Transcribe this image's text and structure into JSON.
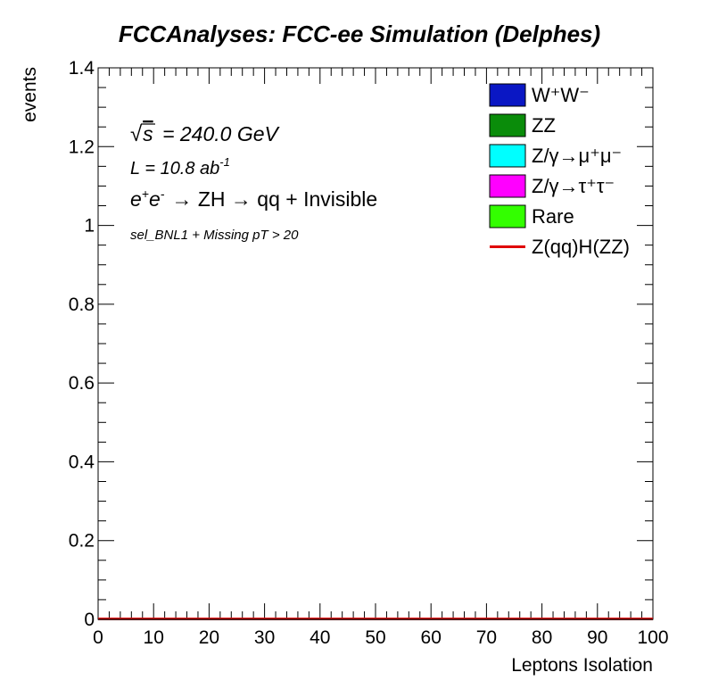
{
  "chart_data": {
    "type": "bar",
    "title": "FCCAnalyses: FCC-ee Simulation (Delphes)",
    "xlabel": "Leptons Isolation",
    "ylabel": "events",
    "xlim": [
      0,
      100
    ],
    "ylim": [
      0,
      1.4
    ],
    "x_ticks": [
      "0",
      "10",
      "20",
      "30",
      "40",
      "50",
      "60",
      "70",
      "80",
      "90",
      "100"
    ],
    "y_ticks": [
      "0",
      "0.2",
      "0.4",
      "0.6",
      "0.8",
      "1",
      "1.2",
      "1.4"
    ],
    "annotations": {
      "sqrt_s": "= 240.0 GeV",
      "lumi": "= 10.8 ab",
      "process": "→ ZH → qq + Invisible",
      "selection": "sel_BNL1 + Missing pT > 20"
    },
    "legend_position": "top-right",
    "series": [
      {
        "name": "W⁺W⁻",
        "color": "#0a17c4",
        "style": "fill",
        "values": [
          0
        ]
      },
      {
        "name": "ZZ",
        "color": "#0a8c0a",
        "style": "fill",
        "values": [
          0
        ]
      },
      {
        "name": "Z/γ→μ⁺μ⁻",
        "color": "#00ffff",
        "style": "fill",
        "values": [
          0
        ]
      },
      {
        "name": "Z/γ→τ⁺τ⁻",
        "color": "#ff00ff",
        "style": "fill",
        "values": [
          0
        ]
      },
      {
        "name": "Rare",
        "color": "#33ff00",
        "style": "fill",
        "values": [
          0
        ]
      },
      {
        "name": "Z(qq)H(ZZ)",
        "color": "#e00000",
        "style": "line",
        "values": [
          0
        ]
      }
    ]
  }
}
